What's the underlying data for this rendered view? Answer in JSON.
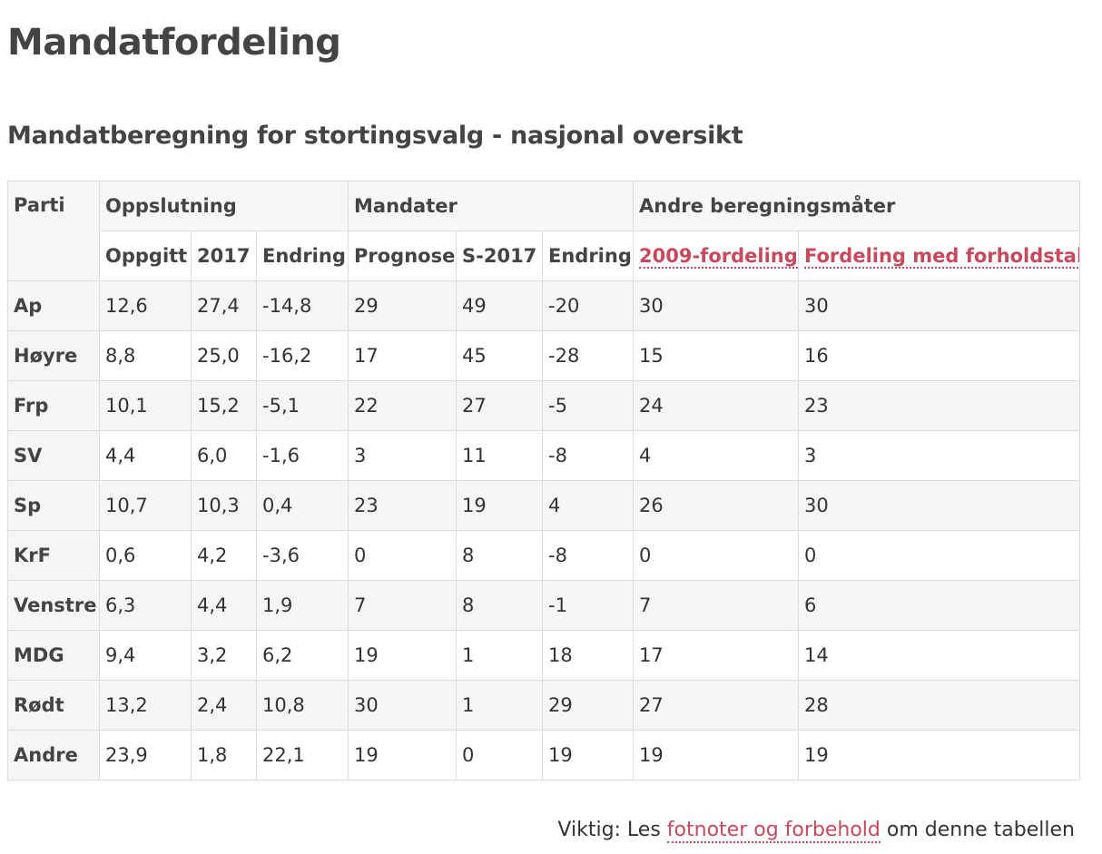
{
  "title": "Mandatfordeling",
  "subtitle": "Mandatberegning for stortingsvalg - nasjonal oversikt",
  "link_color": "#c8485c",
  "table": {
    "group_headers": {
      "parti": "Parti",
      "oppslutning": "Oppslutning",
      "mandater": "Mandater",
      "andre": "Andre beregningsmåter"
    },
    "sub_headers": {
      "oppgitt": "Oppgitt",
      "y2017": "2017",
      "endring_opp": "Endring",
      "prognose": "Prognose",
      "s2017": "S-2017",
      "endring_man": "Endring",
      "f2009": "2009-fordeling",
      "forholdstall": "Fordeling med forholdstall"
    },
    "rows": [
      {
        "party": "Ap",
        "oppgitt": "12,6",
        "y2017": "27,4",
        "endring_opp": "-14,8",
        "prognose": "29",
        "s2017": "49",
        "endring_man": "-20",
        "f2009": "30",
        "forholdstall": "30"
      },
      {
        "party": "Høyre",
        "oppgitt": "8,8",
        "y2017": "25,0",
        "endring_opp": "-16,2",
        "prognose": "17",
        "s2017": "45",
        "endring_man": "-28",
        "f2009": "15",
        "forholdstall": "16"
      },
      {
        "party": "Frp",
        "oppgitt": "10,1",
        "y2017": "15,2",
        "endring_opp": "-5,1",
        "prognose": "22",
        "s2017": "27",
        "endring_man": "-5",
        "f2009": "24",
        "forholdstall": "23"
      },
      {
        "party": "SV",
        "oppgitt": "4,4",
        "y2017": "6,0",
        "endring_opp": "-1,6",
        "prognose": "3",
        "s2017": "11",
        "endring_man": "-8",
        "f2009": "4",
        "forholdstall": "3"
      },
      {
        "party": "Sp",
        "oppgitt": "10,7",
        "y2017": "10,3",
        "endring_opp": "0,4",
        "prognose": "23",
        "s2017": "19",
        "endring_man": "4",
        "f2009": "26",
        "forholdstall": "30"
      },
      {
        "party": "KrF",
        "oppgitt": "0,6",
        "y2017": "4,2",
        "endring_opp": "-3,6",
        "prognose": "0",
        "s2017": "8",
        "endring_man": "-8",
        "f2009": "0",
        "forholdstall": "0"
      },
      {
        "party": "Venstre",
        "oppgitt": "6,3",
        "y2017": "4,4",
        "endring_opp": "1,9",
        "prognose": "7",
        "s2017": "8",
        "endring_man": "-1",
        "f2009": "7",
        "forholdstall": "6"
      },
      {
        "party": "MDG",
        "oppgitt": "9,4",
        "y2017": "3,2",
        "endring_opp": "6,2",
        "prognose": "19",
        "s2017": "1",
        "endring_man": "18",
        "f2009": "17",
        "forholdstall": "14"
      },
      {
        "party": "Rødt",
        "oppgitt": "13,2",
        "y2017": "2,4",
        "endring_opp": "10,8",
        "prognose": "30",
        "s2017": "1",
        "endring_man": "29",
        "f2009": "27",
        "forholdstall": "28"
      },
      {
        "party": "Andre",
        "oppgitt": "23,9",
        "y2017": "1,8",
        "endring_opp": "22,1",
        "prognose": "19",
        "s2017": "0",
        "endring_man": "19",
        "f2009": "19",
        "forholdstall": "19"
      }
    ]
  },
  "footnote": {
    "prefix": "Viktig: Les ",
    "link": "fotnoter og forbehold",
    "suffix": " om denne tabellen"
  }
}
